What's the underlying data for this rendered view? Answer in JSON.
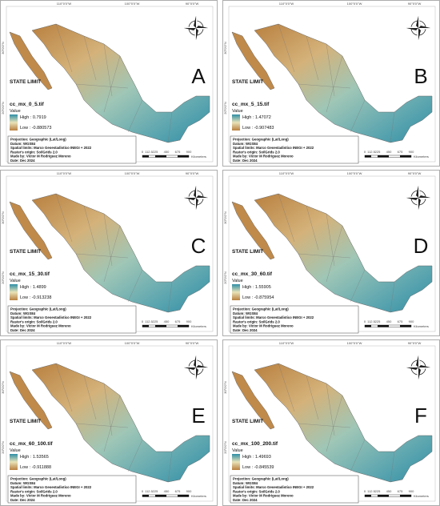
{
  "panels": [
    {
      "letter": "A",
      "file": "cc_mx_0_5.tif",
      "high": "High : 0.7919",
      "low": "Low : -0.880573"
    },
    {
      "letter": "B",
      "file": "cc_mx_5_15.tif",
      "high": "High : 1.47072",
      "low": "Low : -0.907483"
    },
    {
      "letter": "C",
      "file": "cc_mx_15_30.tif",
      "high": "High : 1.4899",
      "low": "Low : -0.913238"
    },
    {
      "letter": "D",
      "file": "cc_mx_30_60.tif",
      "high": "High : 1.55905",
      "low": "Low : -0.875954"
    },
    {
      "letter": "E",
      "file": "cc_mx_60_100.tif",
      "high": "High : 1.53565",
      "low": "Low : -0.911888"
    },
    {
      "letter": "F",
      "file": "cc_mx_100_200.tif",
      "high": "High : 1.49693",
      "low": "Low : -0.845539"
    }
  ],
  "shared": {
    "state_limit": "STATE LIMIT",
    "value": "Value",
    "notes": [
      "Projection: Geographic (Lat/Long)",
      "Datum: WGS84",
      "Spatial limits: Marco Geoestadistico INEGI + 2022",
      "Raster's origin: SoilGrids 2.0",
      "Made by: Victor M Rodriguez Moreno",
      "Date: Dec 2024"
    ],
    "lon_labels": [
      "110°0'0\"W",
      "100°0'0\"W",
      "90°0'0\"W"
    ],
    "lat_labels": [
      "30°0'0\"N",
      "20°0'0\"N"
    ],
    "scale_labels": [
      "0",
      "112.5",
      "225",
      "450",
      "675",
      "900"
    ],
    "scale_unit": "Kilometers"
  }
}
